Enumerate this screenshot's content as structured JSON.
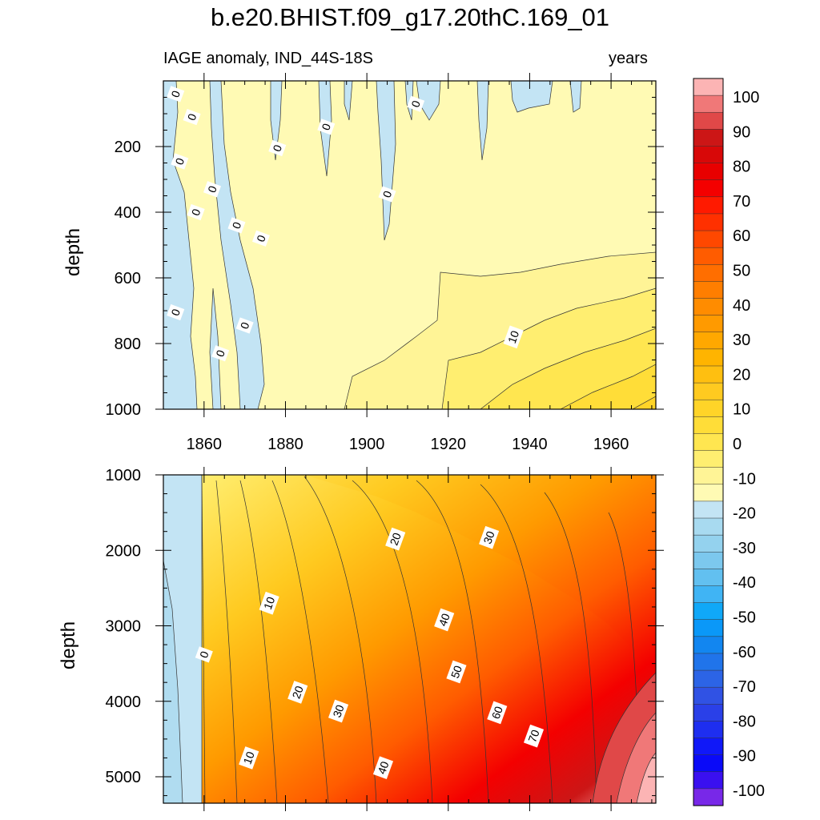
{
  "chart_data": {
    "type": "contour",
    "title": "b.e20.BHIST.f09_g17.20thC.169_01",
    "subtitle_left": "IAGE anomaly, IND_44S-18S",
    "subtitle_right": "years",
    "xlabel": "",
    "ylabel": "depth",
    "xlim": [
      1850,
      1971
    ],
    "x_ticks": [
      "1860",
      "1880",
      "1900",
      "1920",
      "1940",
      "1960"
    ],
    "panels": [
      {
        "name": "upper",
        "ylim": [
          0,
          1000
        ],
        "y_ticks": [
          "200",
          "400",
          "600",
          "800",
          "1000"
        ],
        "y_tick_values": [
          200,
          400,
          600,
          800,
          1000
        ],
        "contour_labels": [
          {
            "text": "0",
            "x": 1853,
            "y": 40
          },
          {
            "text": "0",
            "x": 1857,
            "y": 110
          },
          {
            "text": "0",
            "x": 1854,
            "y": 245
          },
          {
            "text": "0",
            "x": 1862,
            "y": 330
          },
          {
            "text": "0",
            "x": 1858,
            "y": 400
          },
          {
            "text": "0",
            "x": 1868,
            "y": 440
          },
          {
            "text": "0",
            "x": 1874,
            "y": 480
          },
          {
            "text": "0",
            "x": 1878,
            "y": 205
          },
          {
            "text": "0",
            "x": 1890,
            "y": 140
          },
          {
            "text": "0",
            "x": 1912,
            "y": 70
          },
          {
            "text": "0",
            "x": 1905,
            "y": 345
          },
          {
            "text": "0",
            "x": 1853,
            "y": 705
          },
          {
            "text": "0",
            "x": 1870,
            "y": 745
          },
          {
            "text": "0",
            "x": 1864,
            "y": 830
          },
          {
            "text": "10",
            "x": 1936,
            "y": 780
          }
        ]
      },
      {
        "name": "lower",
        "ylim": [
          1000,
          5350
        ],
        "y_ticks": [
          "1000",
          "2000",
          "3000",
          "4000",
          "5000"
        ],
        "y_tick_values": [
          1000,
          2000,
          3000,
          4000,
          5000
        ],
        "contour_labels": [
          {
            "text": "0",
            "x": 1860,
            "y": 3380
          },
          {
            "text": "10",
            "x": 1876,
            "y": 2700
          },
          {
            "text": "10",
            "x": 1871,
            "y": 4750
          },
          {
            "text": "20",
            "x": 1907,
            "y": 1850
          },
          {
            "text": "20",
            "x": 1883,
            "y": 3880
          },
          {
            "text": "30",
            "x": 1930,
            "y": 1830
          },
          {
            "text": "30",
            "x": 1893,
            "y": 4130
          },
          {
            "text": "40",
            "x": 1919,
            "y": 2920
          },
          {
            "text": "40",
            "x": 1904,
            "y": 4880
          },
          {
            "text": "50",
            "x": 1922,
            "y": 3610
          },
          {
            "text": "60",
            "x": 1932,
            "y": 4150
          },
          {
            "text": "70",
            "x": 1941,
            "y": 4460
          }
        ]
      }
    ],
    "colorbar": {
      "labels": [
        "100",
        "90",
        "80",
        "70",
        "60",
        "50",
        "40",
        "30",
        "20",
        "10",
        "0",
        "-10",
        "-20",
        "-30",
        "-40",
        "-50",
        "-60",
        "-70",
        "-80",
        "-90",
        "-100"
      ],
      "colors": [
        "#fcb4b4",
        "#f07878",
        "#e04848",
        "#cc1616",
        "#d80808",
        "#e80000",
        "#f40000",
        "#ff1a00",
        "#ff3000",
        "#ff4800",
        "#ff5c00",
        "#ff6e00",
        "#ff7e00",
        "#ff8c00",
        "#ff9a00",
        "#ffa800",
        "#ffb400",
        "#ffbf10",
        "#ffca20",
        "#ffd428",
        "#ffdd38",
        "#ffe650",
        "#ffee70",
        "#fff496",
        "#fffab4",
        "#c3e4f4",
        "#a8daf0",
        "#94d2ee",
        "#7cc8ee",
        "#62c0f0",
        "#40b4f4",
        "#10a8f8",
        "#0a98f8",
        "#1286f0",
        "#2074ea",
        "#2c64e6",
        "#3052e4",
        "#2a40e8",
        "#1e2ef0",
        "#1018f8",
        "#0a0af8",
        "#3a10f0",
        "#7828e8"
      ]
    }
  }
}
